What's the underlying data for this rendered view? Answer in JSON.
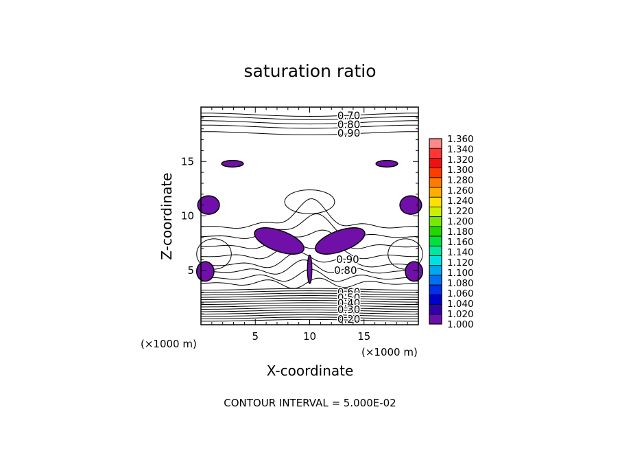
{
  "chart_data": {
    "type": "contour",
    "title": "saturation ratio",
    "xlabel": "X-coordinate",
    "ylabel": "Z-coordinate",
    "x_unit": "(×1000 m)",
    "z_unit": "(×1000 m)",
    "xlim": [
      0,
      20
    ],
    "ylim": [
      0,
      20
    ],
    "x_ticks": [
      "5",
      "10",
      "15"
    ],
    "y_ticks": [
      "5",
      "10",
      "15"
    ],
    "footer": "CONTOUR INTERVAL = 5.000E-02",
    "contour_interval": 0.05,
    "contour_labels": [
      "0.70",
      "0.80",
      "0.90",
      "0.90",
      "0.80",
      "0.60",
      "0.50",
      "0.40",
      "0.30",
      "0.20"
    ],
    "fill_color": "#7010a8",
    "colorbar": {
      "min": 1.0,
      "max": 1.36,
      "labels": [
        "1.360",
        "1.340",
        "1.320",
        "1.300",
        "1.280",
        "1.260",
        "1.240",
        "1.220",
        "1.200",
        "1.180",
        "1.160",
        "1.140",
        "1.120",
        "1.100",
        "1.080",
        "1.060",
        "1.040",
        "1.020",
        "1.000"
      ],
      "colors": [
        "#ff8888",
        "#ff3535",
        "#f01010",
        "#ff3c00",
        "#ff7a00",
        "#ffae00",
        "#ffe000",
        "#c8f000",
        "#78e800",
        "#20d800",
        "#00e040",
        "#00e8a0",
        "#00e0e0",
        "#00a8f0",
        "#0070f0",
        "#0030e8",
        "#0000c8",
        "#3000a8",
        "#6a10a8"
      ]
    }
  }
}
